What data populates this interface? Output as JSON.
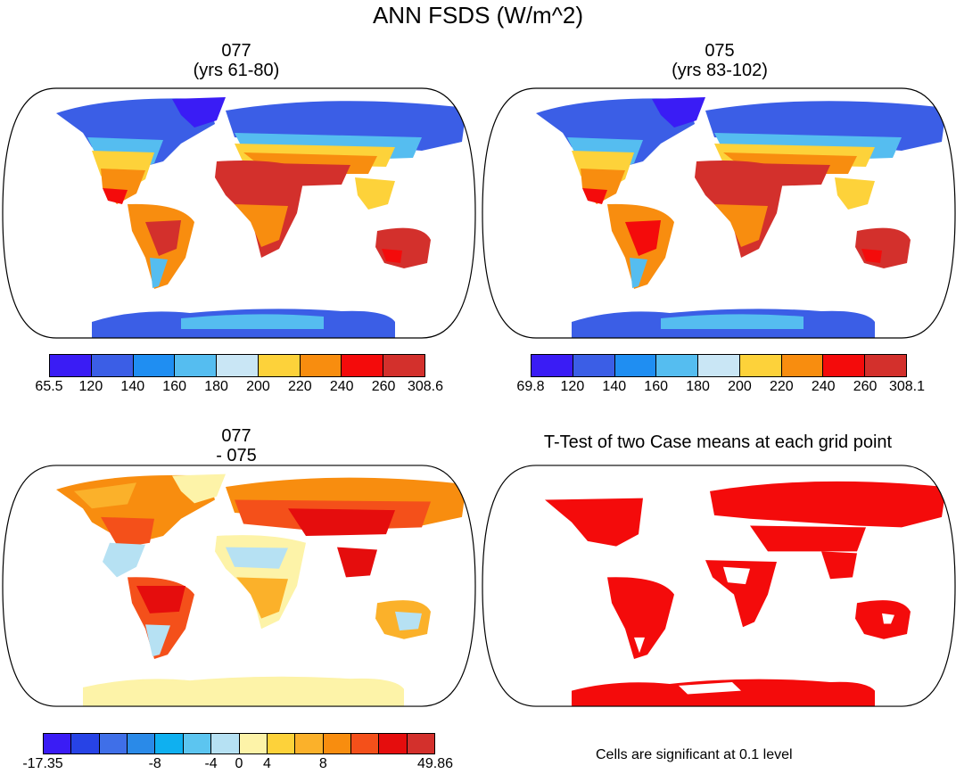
{
  "title": "ANN FSDS (W/m^2)",
  "panels": {
    "top_left": {
      "title_line1": "077",
      "title_line2": "(yrs 61-80)"
    },
    "top_right": {
      "title_line1": "075",
      "title_line2": "(yrs 83-102)"
    },
    "bottom_left": {
      "title_line1": "077",
      "title_line2": "- 075"
    },
    "bottom_right": {
      "title": "T-Test of two Case means at each grid point"
    }
  },
  "colorbars": {
    "top_left": {
      "labels": [
        "65.5",
        "120",
        "140",
        "160",
        "180",
        "200",
        "220",
        "240",
        "260",
        "308.6"
      ],
      "colors": [
        "#3a1cf5",
        "#3b5ee6",
        "#1f8ef2",
        "#55bdf0",
        "#c9e6f5",
        "#fdd23a",
        "#f88d0f",
        "#f40b0b",
        "#d3302c"
      ]
    },
    "top_right": {
      "labels": [
        "69.8",
        "120",
        "140",
        "160",
        "180",
        "200",
        "220",
        "240",
        "260",
        "308.1"
      ],
      "colors": [
        "#3a1cf5",
        "#3b5ee6",
        "#1f8ef2",
        "#55bdf0",
        "#c9e6f5",
        "#fdd23a",
        "#f88d0f",
        "#f40b0b",
        "#d3302c"
      ]
    },
    "bottom_left": {
      "labels": [
        "-17.35",
        "-8",
        "-4",
        "0",
        "4",
        "8",
        "49.86"
      ],
      "colors": [
        "#3a1cf5",
        "#2743e6",
        "#3f6fe8",
        "#2a8ae8",
        "#0fb0f0",
        "#5cc5f0",
        "#b6e1f3",
        "#fdf3a8",
        "#fdd23a",
        "#fbb12a",
        "#f88d0f",
        "#f4501a",
        "#e50d0d",
        "#d3302c"
      ]
    }
  },
  "footnote": "Cells are significant at 0.1 level"
}
